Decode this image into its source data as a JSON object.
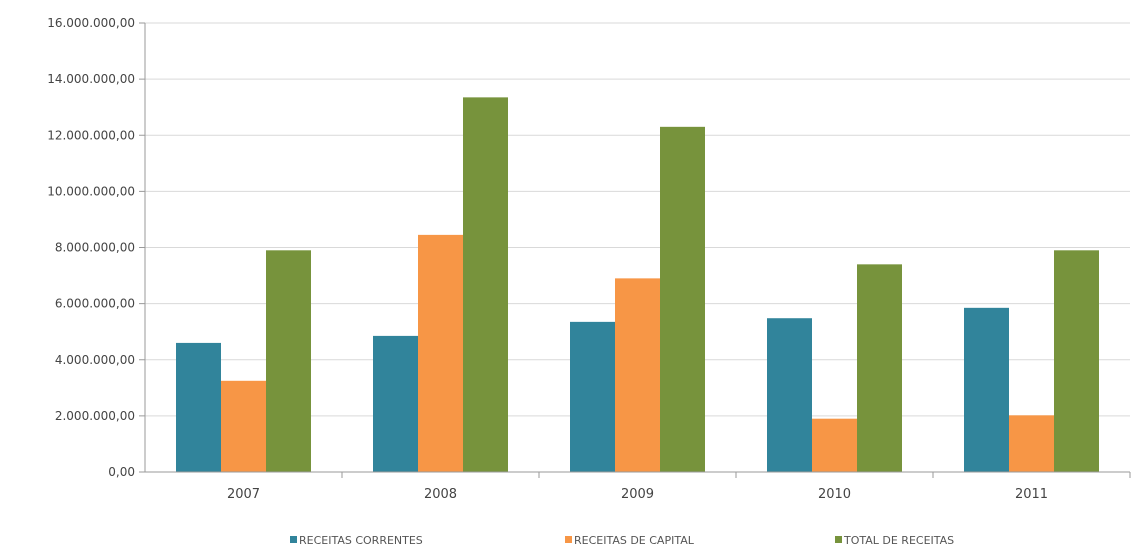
{
  "chart_data": {
    "type": "bar",
    "title": "",
    "xlabel": "",
    "ylabel": "",
    "categories": [
      "2007",
      "2008",
      "2009",
      "2010",
      "2011"
    ],
    "ylim": [
      0,
      16000000
    ],
    "yticks": [
      0,
      2000000,
      4000000,
      6000000,
      8000000,
      10000000,
      12000000,
      14000000,
      16000000
    ],
    "ytick_labels": [
      "0,00",
      "2.000.000,00",
      "4.000.000,00",
      "6.000.000,00",
      "8.000.000,00",
      "10.000.000,00",
      "12.000.000,00",
      "14.000.000,00",
      "16.000.000,00"
    ],
    "grid": true,
    "legend_position": "bottom",
    "series": [
      {
        "name": "RECEITAS CORRENTES",
        "color": "#31849B",
        "values": [
          4600000,
          4850000,
          5350000,
          5480000,
          5850000
        ]
      },
      {
        "name": "RECEITAS DE CAPITAL",
        "color": "#F79646",
        "values": [
          3250000,
          8450000,
          6900000,
          1900000,
          2020000
        ]
      },
      {
        "name": "TOTAL DE RECEITAS",
        "color": "#77933C",
        "values": [
          7900000,
          13350000,
          12300000,
          7400000,
          7900000
        ]
      }
    ]
  }
}
